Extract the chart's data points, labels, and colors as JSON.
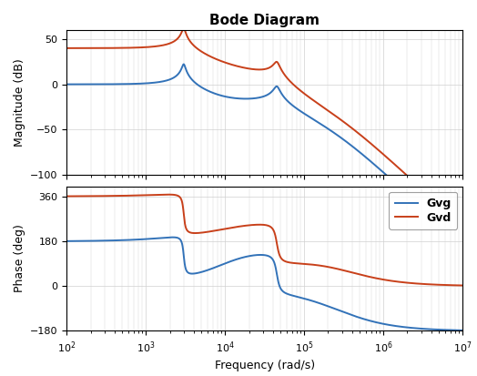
{
  "title": "Bode Diagram",
  "xlabel": "Frequency (rad/s)",
  "ylabel_mag": "Magnitude (dB)",
  "ylabel_phase": "Phase (deg)",
  "freq_range": [
    100,
    10000000.0
  ],
  "mag_ylim": [
    -100,
    60
  ],
  "phase_ylim": [
    -180,
    400
  ],
  "mag_yticks": [
    -100,
    -50,
    0,
    50
  ],
  "phase_yticks": [
    -180,
    0,
    180,
    360
  ],
  "legend_labels": [
    "Gvg",
    "Gvd"
  ],
  "color_gvg": "#3272b8",
  "color_gvd": "#c8401a",
  "background_color": "#ffffff",
  "grid_color": "#d0d0d0",
  "linewidth": 1.4
}
